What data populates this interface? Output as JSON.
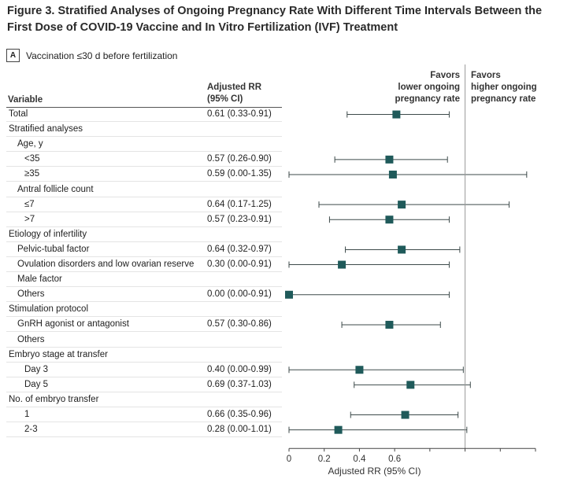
{
  "figure": {
    "title": "Figure 3. Stratified Analyses of Ongoing Pregnancy Rate With Different Time Intervals Between the First Dose of COVID-19 Vaccine and In Vitro Fertilization (IVF) Treatment",
    "panel_letter": "A",
    "panel_label": "Vaccination ≤30 d before fertilization"
  },
  "headers": {
    "variable": "Variable",
    "rr_line1": "Adjusted RR",
    "rr_line2": "(95% CI)",
    "favors_lower_1": "Favors",
    "favors_lower_2": "lower ongoing",
    "favors_lower_3": "pregnancy rate",
    "favors_higher_1": "Favors",
    "favors_higher_2": "higher ongoing",
    "favors_higher_3": "pregnancy rate"
  },
  "chart_data": {
    "type": "forest",
    "xlabel": "Adjusted RR (95% CI)",
    "xlim": [
      0,
      1.4
    ],
    "xticks": [
      0,
      0.2,
      0.4,
      0.6,
      0.8,
      1.0,
      1.2,
      1.4
    ],
    "xtick_labels": [
      "0",
      "0.2",
      "0.4",
      "0.6",
      "",
      "",
      "",
      ""
    ],
    "reference_line": 1.0,
    "marker_color": "#1f5a5a",
    "rows": [
      {
        "label": "Total",
        "indent": 0,
        "rr_text": "0.61 (0.33-0.91)",
        "est": 0.61,
        "lo": 0.33,
        "hi": 0.91
      },
      {
        "label": "Stratified analyses",
        "indent": 0,
        "rr_text": "",
        "est": null,
        "lo": null,
        "hi": null
      },
      {
        "label": "Age, y",
        "indent": 1,
        "rr_text": "",
        "est": null,
        "lo": null,
        "hi": null
      },
      {
        "label": "<35",
        "indent": 2,
        "rr_text": "0.57 (0.26-0.90)",
        "est": 0.57,
        "lo": 0.26,
        "hi": 0.9
      },
      {
        "label": "≥35",
        "indent": 2,
        "rr_text": "0.59 (0.00-1.35)",
        "est": 0.59,
        "lo": 0.0,
        "hi": 1.35
      },
      {
        "label": "Antral follicle count",
        "indent": 1,
        "rr_text": "",
        "est": null,
        "lo": null,
        "hi": null
      },
      {
        "label": "≤7",
        "indent": 2,
        "rr_text": "0.64 (0.17-1.25)",
        "est": 0.64,
        "lo": 0.17,
        "hi": 1.25
      },
      {
        "label": ">7",
        "indent": 2,
        "rr_text": "0.57 (0.23-0.91)",
        "est": 0.57,
        "lo": 0.23,
        "hi": 0.91
      },
      {
        "label": "Etiology of infertility",
        "indent": 0,
        "rr_text": "",
        "est": null,
        "lo": null,
        "hi": null
      },
      {
        "label": "Pelvic-tubal factor",
        "indent": 1,
        "rr_text": "0.64 (0.32-0.97)",
        "est": 0.64,
        "lo": 0.32,
        "hi": 0.97
      },
      {
        "label": "Ovulation disorders and low ovarian reserve",
        "indent": 1,
        "rr_text": "0.30 (0.00-0.91)",
        "est": 0.3,
        "lo": 0.0,
        "hi": 0.91
      },
      {
        "label": "Male factor",
        "indent": 1,
        "rr_text": "",
        "est": null,
        "lo": null,
        "hi": null
      },
      {
        "label": "Others",
        "indent": 1,
        "rr_text": "0.00 (0.00-0.91)",
        "est": 0.0,
        "lo": 0.0,
        "hi": 0.91
      },
      {
        "label": "Stimulation protocol",
        "indent": 0,
        "rr_text": "",
        "est": null,
        "lo": null,
        "hi": null
      },
      {
        "label": "GnRH agonist or antagonist",
        "indent": 1,
        "rr_text": "0.57 (0.30-0.86)",
        "est": 0.57,
        "lo": 0.3,
        "hi": 0.86
      },
      {
        "label": "Others",
        "indent": 1,
        "rr_text": "",
        "est": null,
        "lo": null,
        "hi": null
      },
      {
        "label": "Embryo stage at transfer",
        "indent": 0,
        "rr_text": "",
        "est": null,
        "lo": null,
        "hi": null
      },
      {
        "label": "Day 3",
        "indent": 2,
        "rr_text": "0.40 (0.00-0.99)",
        "est": 0.4,
        "lo": 0.0,
        "hi": 0.99
      },
      {
        "label": "Day 5",
        "indent": 2,
        "rr_text": "0.69 (0.37-1.03)",
        "est": 0.69,
        "lo": 0.37,
        "hi": 1.03
      },
      {
        "label": "No. of embryo transfer",
        "indent": 0,
        "rr_text": "",
        "est": null,
        "lo": null,
        "hi": null
      },
      {
        "label": "1",
        "indent": 2,
        "rr_text": "0.66 (0.35-0.96)",
        "est": 0.66,
        "lo": 0.35,
        "hi": 0.96
      },
      {
        "label": "2-3",
        "indent": 2,
        "rr_text": "0.28 (0.00-1.01)",
        "est": 0.28,
        "lo": 0.0,
        "hi": 1.01
      }
    ]
  }
}
